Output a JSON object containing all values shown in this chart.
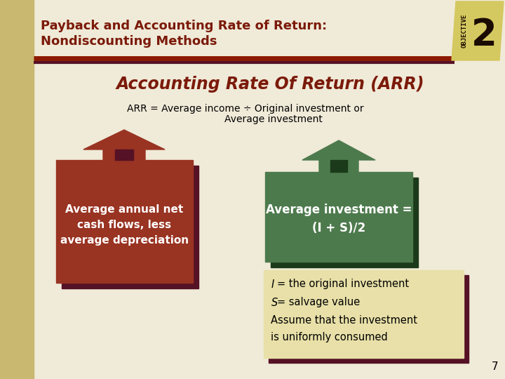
{
  "bg_color": "#f0ead8",
  "left_bar_color": "#c8b870",
  "title_text1": "Payback and Accounting Rate of Return:",
  "title_text2": "Nondiscounting Methods",
  "title_color": "#7b1a0a",
  "title_fontsize": 13,
  "subtitle": "Accounting Rate Of Return (ARR)",
  "subtitle_color": "#7b1a0a",
  "subtitle_fontsize": 17,
  "arr_line1": "ARR = Average income ÷ Original investment or",
  "arr_line2": "Average investment",
  "arr_fontsize": 10,
  "box1_color": "#993322",
  "box1_shadow": "#551125",
  "box1_text": "Average annual net\ncash flows, less\naverage depreciation",
  "box2_color": "#4d7a4d",
  "box2_shadow": "#1a3a1a",
  "box2_text": "Average investment =\n(I + S)/2",
  "note_box_color": "#e8e0a8",
  "note_box_border": "#551125",
  "note_fontsize": 10.5,
  "page_num": "7",
  "obj_bg": "#d4c860",
  "obj_text": "OBJECTIVE",
  "obj_num": "2",
  "sep_color1": "#8b1a00",
  "sep_color2": "#551125",
  "white": "#ffffff",
  "black": "#000000"
}
